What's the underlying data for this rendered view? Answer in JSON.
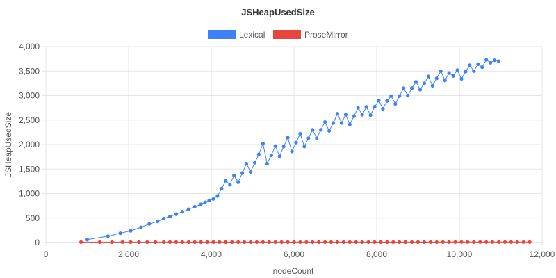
{
  "chart_data": {
    "type": "line",
    "title": "JSHeapUsedSize",
    "xlabel": "nodeCount",
    "ylabel": "JSHeapUsedSize",
    "xlim": [
      0,
      12000
    ],
    "ylim": [
      0,
      4000
    ],
    "xticks": [
      0,
      2000,
      4000,
      6000,
      8000,
      10000,
      12000
    ],
    "xtick_labels": [
      "0",
      "2,000",
      "4,000",
      "6,000",
      "8,000",
      "10,000",
      "12,000"
    ],
    "yticks": [
      0,
      500,
      1000,
      1500,
      2000,
      2500,
      3000,
      3500,
      4000
    ],
    "ytick_labels": [
      "0",
      "500",
      "1,000",
      "1,500",
      "2,000",
      "2,500",
      "3,000",
      "3,500",
      "4,000"
    ],
    "grid": true,
    "legend_position": "top",
    "series": [
      {
        "name": "Lexical",
        "color": "#3e82f7",
        "points": [
          [
            1000,
            60
          ],
          [
            1500,
            130
          ],
          [
            1800,
            190
          ],
          [
            2050,
            240
          ],
          [
            2300,
            310
          ],
          [
            2500,
            380
          ],
          [
            2700,
            430
          ],
          [
            2850,
            490
          ],
          [
            3000,
            530
          ],
          [
            3150,
            580
          ],
          [
            3300,
            630
          ],
          [
            3450,
            680
          ],
          [
            3600,
            730
          ],
          [
            3750,
            780
          ],
          [
            3850,
            820
          ],
          [
            3950,
            860
          ],
          [
            4050,
            890
          ],
          [
            4150,
            950
          ],
          [
            4250,
            1100
          ],
          [
            4350,
            1260
          ],
          [
            4450,
            1180
          ],
          [
            4550,
            1370
          ],
          [
            4650,
            1230
          ],
          [
            4750,
            1420
          ],
          [
            4850,
            1610
          ],
          [
            4950,
            1440
          ],
          [
            5050,
            1630
          ],
          [
            5150,
            1800
          ],
          [
            5250,
            2020
          ],
          [
            5350,
            1610
          ],
          [
            5450,
            1780
          ],
          [
            5550,
            1970
          ],
          [
            5650,
            1760
          ],
          [
            5750,
            1960
          ],
          [
            5850,
            2140
          ],
          [
            5950,
            1860
          ],
          [
            6050,
            2040
          ],
          [
            6150,
            2220
          ],
          [
            6250,
            1960
          ],
          [
            6350,
            2130
          ],
          [
            6450,
            2300
          ],
          [
            6550,
            2130
          ],
          [
            6650,
            2300
          ],
          [
            6750,
            2460
          ],
          [
            6850,
            2280
          ],
          [
            6950,
            2440
          ],
          [
            7050,
            2630
          ],
          [
            7150,
            2440
          ],
          [
            7250,
            2610
          ],
          [
            7350,
            2410
          ],
          [
            7450,
            2580
          ],
          [
            7550,
            2750
          ],
          [
            7650,
            2610
          ],
          [
            7750,
            2770
          ],
          [
            7850,
            2600
          ],
          [
            7950,
            2770
          ],
          [
            8050,
            2900
          ],
          [
            8150,
            2730
          ],
          [
            8250,
            2890
          ],
          [
            8350,
            2990
          ],
          [
            8450,
            2830
          ],
          [
            8550,
            2990
          ],
          [
            8650,
            3150
          ],
          [
            8750,
            3000
          ],
          [
            8850,
            3150
          ],
          [
            8950,
            3280
          ],
          [
            9050,
            3120
          ],
          [
            9150,
            3250
          ],
          [
            9250,
            3390
          ],
          [
            9350,
            3200
          ],
          [
            9450,
            3350
          ],
          [
            9550,
            3500
          ],
          [
            9650,
            3310
          ],
          [
            9750,
            3460
          ],
          [
            9850,
            3400
          ],
          [
            9950,
            3520
          ],
          [
            10050,
            3340
          ],
          [
            10150,
            3490
          ],
          [
            10250,
            3620
          ],
          [
            10350,
            3500
          ],
          [
            10450,
            3640
          ],
          [
            10550,
            3580
          ],
          [
            10650,
            3730
          ],
          [
            10750,
            3670
          ],
          [
            10850,
            3720
          ],
          [
            10950,
            3700
          ]
        ]
      },
      {
        "name": "ProseMirror",
        "color": "#e8453c",
        "points": [
          [
            850,
            8
          ],
          [
            1300,
            8
          ],
          [
            1600,
            8
          ],
          [
            1850,
            8
          ],
          [
            2050,
            8
          ],
          [
            2250,
            8
          ],
          [
            2450,
            8
          ],
          [
            2650,
            8
          ],
          [
            2850,
            8
          ],
          [
            3000,
            8
          ],
          [
            3150,
            8
          ],
          [
            3300,
            8
          ],
          [
            3450,
            8
          ],
          [
            3600,
            8
          ],
          [
            3750,
            8
          ],
          [
            3900,
            8
          ],
          [
            4050,
            8
          ],
          [
            4200,
            8
          ],
          [
            4350,
            8
          ],
          [
            4500,
            8
          ],
          [
            4650,
            8
          ],
          [
            4800,
            8
          ],
          [
            4950,
            8
          ],
          [
            5100,
            8
          ],
          [
            5250,
            8
          ],
          [
            5400,
            8
          ],
          [
            5550,
            8
          ],
          [
            5700,
            8
          ],
          [
            5850,
            8
          ],
          [
            6000,
            8
          ],
          [
            6150,
            8
          ],
          [
            6300,
            8
          ],
          [
            6450,
            8
          ],
          [
            6600,
            8
          ],
          [
            6750,
            8
          ],
          [
            6900,
            9
          ],
          [
            7050,
            9
          ],
          [
            7200,
            9
          ],
          [
            7350,
            9
          ],
          [
            7500,
            9
          ],
          [
            7650,
            9
          ],
          [
            7800,
            9
          ],
          [
            7950,
            9
          ],
          [
            8100,
            9
          ],
          [
            8250,
            9
          ],
          [
            8400,
            9
          ],
          [
            8550,
            9
          ],
          [
            8700,
            9
          ],
          [
            8850,
            9
          ],
          [
            9000,
            9
          ],
          [
            9150,
            9
          ],
          [
            9300,
            9
          ],
          [
            9450,
            9
          ],
          [
            9600,
            10
          ],
          [
            9750,
            10
          ],
          [
            9900,
            10
          ],
          [
            10050,
            10
          ],
          [
            10200,
            10
          ],
          [
            10350,
            10
          ],
          [
            10500,
            10
          ],
          [
            10650,
            10
          ],
          [
            10800,
            10
          ],
          [
            10950,
            10
          ],
          [
            11100,
            10
          ],
          [
            11250,
            10
          ],
          [
            11400,
            10
          ],
          [
            11550,
            10
          ],
          [
            11700,
            10
          ]
        ]
      }
    ]
  }
}
